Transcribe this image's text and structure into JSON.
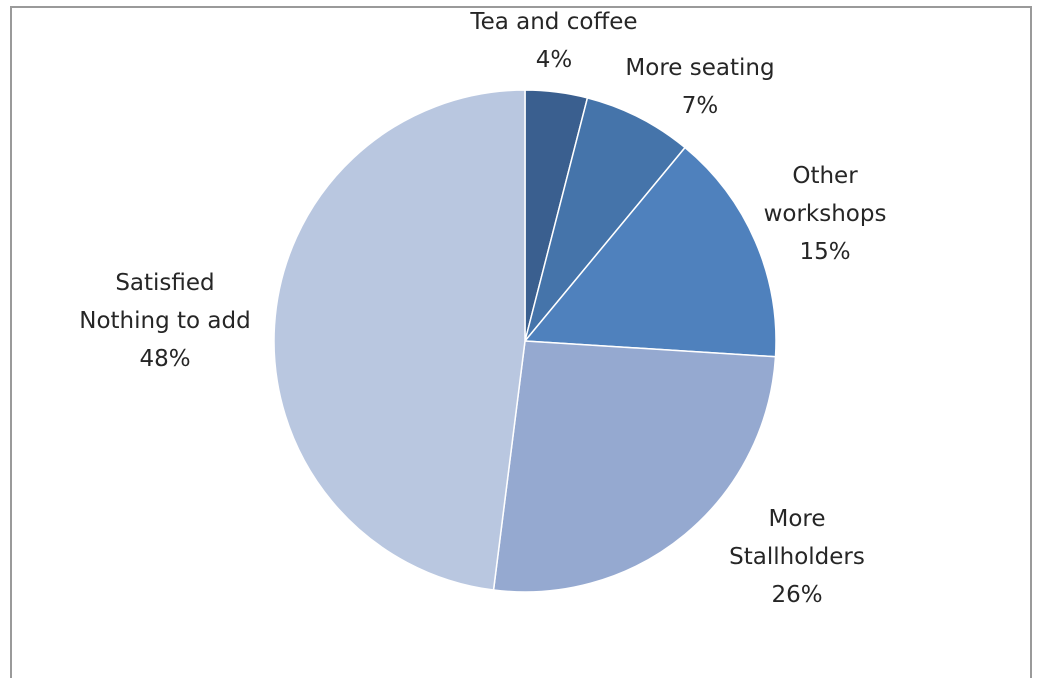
{
  "chart_data": {
    "type": "pie",
    "title": "",
    "slices": [
      {
        "label": "Tea and coffee",
        "lines": [
          "Tea and coffee",
          "4%"
        ],
        "value": 4,
        "color": "#3a5f8f"
      },
      {
        "label": "More seating",
        "lines": [
          "More seating",
          "7%"
        ],
        "value": 7,
        "color": "#4574aa"
      },
      {
        "label": "Other workshops",
        "lines": [
          "Other",
          "workshops",
          "15%"
        ],
        "value": 15,
        "color": "#4f81bd"
      },
      {
        "label": "More Stallholders",
        "lines": [
          "More",
          "Stallholders",
          "26%"
        ],
        "value": 26,
        "color": "#95a9d0"
      },
      {
        "label": "Satisfied Nothing to add",
        "lines": [
          "Satisfied",
          "Nothing to add",
          "48%"
        ],
        "value": 48,
        "color": "#b9c7e0"
      }
    ],
    "start_angle_deg": 0,
    "direction": "clockwise",
    "legend": "none",
    "data_labels": "outside"
  }
}
